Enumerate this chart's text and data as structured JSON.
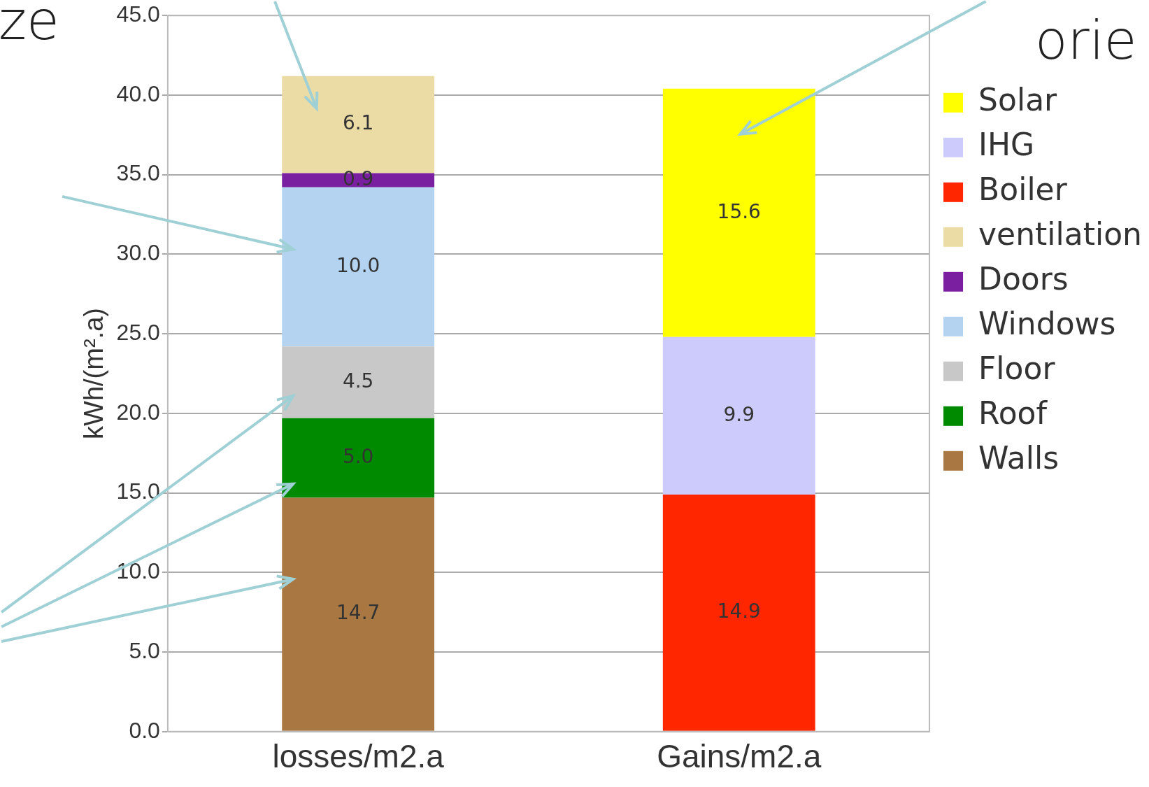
{
  "chart_data": {
    "type": "bar",
    "stacked": true,
    "ylabel": "kWh/(m².a)",
    "categories": [
      "losses/m2.a",
      "Gains/m2.a"
    ],
    "ylim": [
      0,
      45
    ],
    "yticks": [
      {
        "value": 0,
        "label": "0.0"
      },
      {
        "value": 5,
        "label": "5.0"
      },
      {
        "value": 10,
        "label": "10.0"
      },
      {
        "value": 15,
        "label": "15.0"
      },
      {
        "value": 20,
        "label": "20.0"
      },
      {
        "value": 25,
        "label": "25.0"
      },
      {
        "value": 30,
        "label": "30.0"
      },
      {
        "value": 35,
        "label": "35.0"
      },
      {
        "value": 40,
        "label": "40.0"
      },
      {
        "value": 45,
        "label": "45.0"
      }
    ],
    "grid": "y",
    "legend": "top right",
    "annotations": [
      "ze",
      "orie"
    ],
    "series": [
      {
        "name": "Walls",
        "color": "#a97842",
        "values": [
          14.7,
          null
        ],
        "value_labels": [
          "14.7",
          null
        ]
      },
      {
        "name": "Roof",
        "color": "#008a00",
        "values": [
          5.0,
          null
        ],
        "value_labels": [
          "5.0",
          null
        ]
      },
      {
        "name": "Floor",
        "color": "#c8c8c8",
        "values": [
          4.5,
          null
        ],
        "value_labels": [
          "4.5",
          null
        ]
      },
      {
        "name": "Windows",
        "color": "#b3d3f0",
        "values": [
          10.0,
          null
        ],
        "value_labels": [
          "10.0",
          null
        ]
      },
      {
        "name": "Doors",
        "color": "#7a1fa0",
        "values": [
          0.9,
          null
        ],
        "value_labels": [
          "0.9",
          null
        ]
      },
      {
        "name": "ventilation",
        "color": "#ebdca5",
        "values": [
          6.1,
          null
        ],
        "value_labels": [
          "6.1",
          null
        ]
      },
      {
        "name": "Boiler",
        "color": "#ff2600",
        "values": [
          null,
          14.9
        ],
        "value_labels": [
          null,
          "14.9"
        ]
      },
      {
        "name": "IHG",
        "color": "#cccbfb",
        "values": [
          null,
          9.9
        ],
        "value_labels": [
          null,
          "9.9"
        ]
      },
      {
        "name": "Solar",
        "color": "#ffff00",
        "values": [
          null,
          15.6
        ],
        "value_labels": [
          null,
          "15.6"
        ]
      }
    ]
  }
}
